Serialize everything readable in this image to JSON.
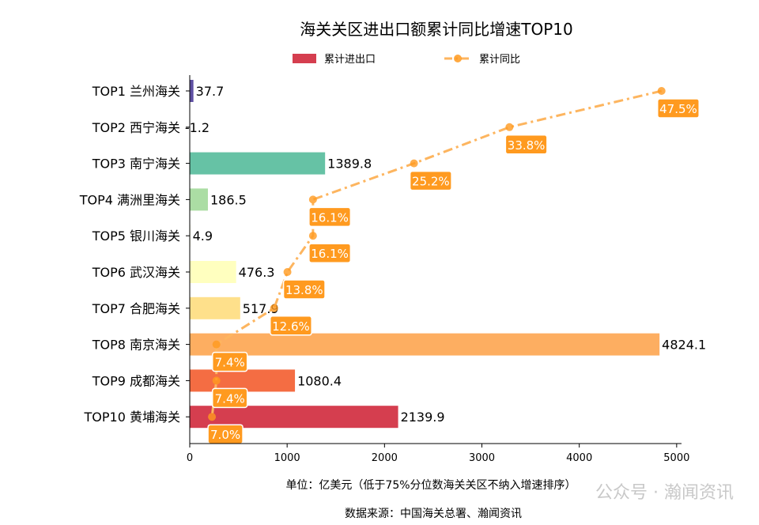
{
  "chart_data": {
    "type": "bar+line",
    "title": "海关关区进出口额累计同比增速TOP10",
    "xlabel": "单位：亿美元（低于75%分位数海关关区不纳入增速排序）",
    "source": "数据来源：中国海关总署、瀚闻资讯",
    "watermark": "公众号 · 瀚闻资讯",
    "categories": [
      "TOP1 兰州海关",
      "TOP2 西宁海关",
      "TOP3 南宁海关",
      "TOP4 满洲里海关",
      "TOP5 银川海关",
      "TOP6 武汉海关",
      "TOP7 合肥海关",
      "TOP8 南京海关",
      "TOP9 成都海关",
      "TOP10 黄埔海关"
    ],
    "series": [
      {
        "name": "累计进出口",
        "type": "barh",
        "values": [
          37.7,
          -1.2,
          1389.8,
          186.5,
          4.9,
          476.3,
          517.9,
          4824.1,
          1080.4,
          2139.9
        ],
        "value_labels": [
          "37.7",
          "-1.2",
          "1389.8",
          "186.5",
          "4.9",
          "476.3",
          "517.9",
          "4824.1",
          "1080.4",
          "2139.9"
        ],
        "colors": [
          "#5e4fa2",
          "#3288bd",
          "#66c2a5",
          "#abdda4",
          "#e6f598",
          "#ffffbf",
          "#fee08b",
          "#fdae61",
          "#f46d43",
          "#d53e4f"
        ]
      },
      {
        "name": "累计同比",
        "type": "line",
        "values": [
          47.5,
          33.8,
          25.2,
          16.1,
          16.1,
          13.8,
          12.6,
          7.4,
          7.4,
          7.0
        ],
        "value_labels": [
          "47.5%",
          "33.8%",
          "25.2%",
          "16.1%",
          "16.1%",
          "13.8%",
          "12.6%",
          "7.4%",
          "7.4%",
          "7.0%"
        ],
        "color": "#fdb55f",
        "label_bg": "#ff9a1f"
      }
    ],
    "xlim": [
      0,
      5050
    ],
    "xticks": [
      "0",
      "1000",
      "2000",
      "3000",
      "4000",
      "5000"
    ],
    "x2lim": [
      5.0,
      49.3
    ],
    "legend": "top-center",
    "grid": false
  }
}
